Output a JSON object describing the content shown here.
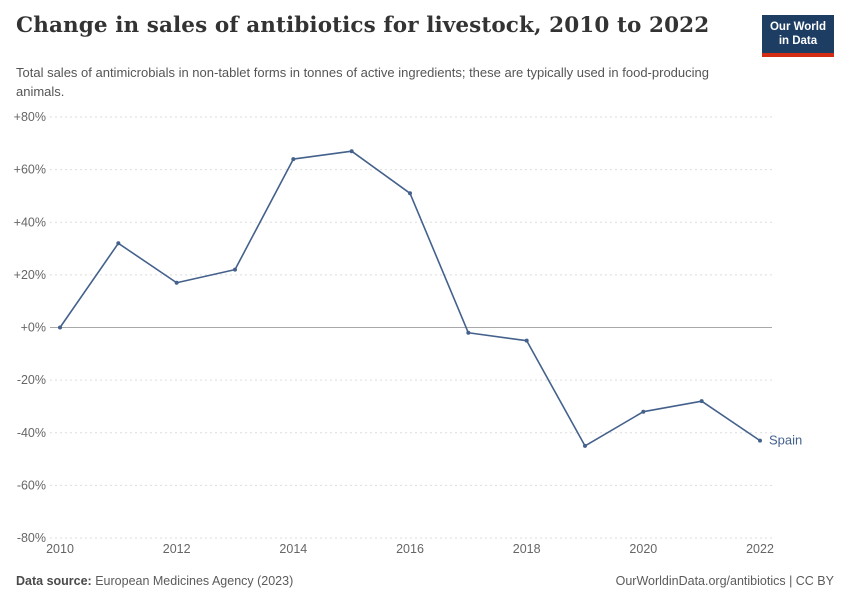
{
  "header": {
    "title": "Change in sales of antibiotics for livestock, 2010 to 2022",
    "subtitle": "Total sales of antimicrobials in non-tablet forms in tonnes of active ingredients; these are typically used in food-producing animals.",
    "logo": {
      "line1": "Our World",
      "line2": "in Data",
      "bg_color": "#1d3d63",
      "accent_color": "#d42b13"
    }
  },
  "chart_data": {
    "type": "line",
    "title": "Change in sales of antibiotics for livestock, 2010 to 2022",
    "x": [
      2010,
      2011,
      2012,
      2013,
      2014,
      2015,
      2016,
      2017,
      2018,
      2019,
      2020,
      2021,
      2022
    ],
    "series": [
      {
        "name": "Spain",
        "color": "#44618c",
        "values": [
          0,
          32,
          17,
          22,
          64,
          67,
          51,
          -2,
          -5,
          -45,
          -32,
          -28,
          -43
        ]
      }
    ],
    "ylim": [
      -80,
      80
    ],
    "yticks": [
      {
        "value": 80,
        "label": "+80%"
      },
      {
        "value": 60,
        "label": "+60%"
      },
      {
        "value": 40,
        "label": "+40%"
      },
      {
        "value": 20,
        "label": "+20%"
      },
      {
        "value": 0,
        "label": "+0%"
      },
      {
        "value": -20,
        "label": "-20%"
      },
      {
        "value": -40,
        "label": "-40%"
      },
      {
        "value": -60,
        "label": "-60%"
      },
      {
        "value": -80,
        "label": "-80%"
      }
    ],
    "xticks": [
      {
        "value": 2010,
        "label": "2010"
      },
      {
        "value": 2012,
        "label": "2012"
      },
      {
        "value": 2014,
        "label": "2014"
      },
      {
        "value": 2016,
        "label": "2016"
      },
      {
        "value": 2018,
        "label": "2018"
      },
      {
        "value": 2020,
        "label": "2020"
      },
      {
        "value": 2022,
        "label": "2022"
      }
    ],
    "grid": {
      "horizontal": true,
      "style": "dashed",
      "color": "#dddddd",
      "zero_line_color": "#a8a8a8"
    },
    "end_label": "Spain",
    "legend_position": "end-of-line"
  },
  "footer": {
    "source_label": "Data source:",
    "source_text": " European Medicines Agency (2023)",
    "right": "OurWorldinData.org/antibiotics | CC BY"
  }
}
